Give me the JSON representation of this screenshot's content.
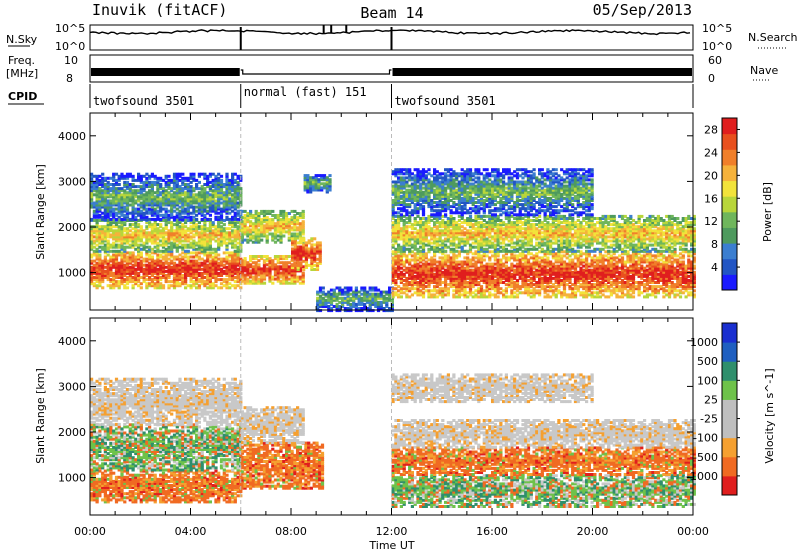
{
  "header": {
    "title_left": "Inuvik (fitACF)",
    "title_center": "Beam 14",
    "title_right": "05/Sep/2013"
  },
  "strip": {
    "nsky_label": "N.Sky",
    "nsky_ticks": [
      "10^5",
      "10^0"
    ],
    "nsearch_label": "N.Search",
    "nsearch_ticks": [
      "10^5",
      "10^0"
    ],
    "freq_label": "Freq.",
    "freq_unit": "[MHz]",
    "freq_ticks": [
      "10",
      "8"
    ],
    "nave_label": "Nave",
    "nave_ticks": [
      "60",
      "0"
    ],
    "cpid_label": "CPID",
    "cpid_segments": [
      {
        "label": "twofsound 3501",
        "start": 0,
        "end": 6
      },
      {
        "label": "normal (fast) 151",
        "start": 6,
        "end": 12
      },
      {
        "label": "twofsound 3501",
        "start": 12,
        "end": 24
      }
    ]
  },
  "chart_data": [
    {
      "type": "heatmap",
      "title": "",
      "xlabel": "Time UT",
      "ylabel": "Slant Range [km]",
      "xlim": [
        0,
        24
      ],
      "ylim": [
        180,
        4500
      ],
      "x_ticks": [
        "00:00",
        "04:00",
        "08:00",
        "12:00",
        "16:00",
        "20:00",
        "00:00"
      ],
      "y_ticks": [
        "1000",
        "2000",
        "3000",
        "4000"
      ],
      "colorbar": {
        "label": "Power [dB]",
        "ticks": [
          "4",
          "8",
          "12",
          "16",
          "20",
          "24",
          "28"
        ],
        "range": [
          0,
          30
        ],
        "colors": [
          "#1a1aff",
          "#2255c4",
          "#3b7ed0",
          "#4e9a5e",
          "#6fb65c",
          "#b8d63a",
          "#f2e33a",
          "#f5b23b",
          "#f07f2a",
          "#e8501e",
          "#e01e1e"
        ]
      },
      "bands": [
        {
          "t0": 0,
          "t1": 6,
          "r0": 700,
          "r1": 1500,
          "level": "high"
        },
        {
          "t0": 0,
          "t1": 6,
          "r0": 1500,
          "r1": 2200,
          "level": "mid"
        },
        {
          "t0": 0,
          "t1": 6,
          "r0": 2200,
          "r1": 3200,
          "level": "low"
        },
        {
          "t0": 6,
          "t1": 8.5,
          "r0": 800,
          "r1": 1400,
          "level": "high"
        },
        {
          "t0": 6,
          "t1": 8.5,
          "r0": 1700,
          "r1": 2400,
          "level": "mid"
        },
        {
          "t0": 8,
          "t1": 9.2,
          "r0": 1100,
          "r1": 1800,
          "level": "high"
        },
        {
          "t0": 8.5,
          "t1": 9.5,
          "r0": 2800,
          "r1": 3200,
          "level": "low"
        },
        {
          "t0": 9,
          "t1": 12,
          "r0": 200,
          "r1": 700,
          "level": "low"
        },
        {
          "t0": 12,
          "t1": 24,
          "r0": 500,
          "r1": 1500,
          "level": "high"
        },
        {
          "t0": 12,
          "t1": 24,
          "r0": 1500,
          "r1": 2300,
          "level": "mid"
        },
        {
          "t0": 12,
          "t1": 20,
          "r0": 2300,
          "r1": 3300,
          "level": "low"
        }
      ]
    },
    {
      "type": "heatmap",
      "title": "",
      "xlabel": "Time UT",
      "ylabel": "Slant Range [km]",
      "xlim": [
        0,
        24
      ],
      "ylim": [
        180,
        4500
      ],
      "x_ticks": [
        "00:00",
        "04:00",
        "08:00",
        "12:00",
        "16:00",
        "20:00",
        "00:00"
      ],
      "y_ticks": [
        "1000",
        "2000",
        "3000",
        "4000"
      ],
      "colorbar": {
        "label": "Velocity [m s^-1]",
        "ticks": [
          "1000",
          "500",
          "100",
          "25",
          "-25",
          "-100",
          "-500",
          "-1000"
        ],
        "range": [
          -1000,
          1000
        ],
        "colors": [
          "#e01e1e",
          "#f06a22",
          "#f5a030",
          "#bfbfbf",
          "#bfbfbf",
          "#6ec24a",
          "#2f8f6c",
          "#1f5fc0",
          "#1a2fd0"
        ]
      },
      "bands": [
        {
          "t0": 0,
          "t1": 6,
          "r0": 500,
          "r1": 1200,
          "level": "neg"
        },
        {
          "t0": 0,
          "t1": 6,
          "r0": 1200,
          "r1": 2200,
          "level": "mix"
        },
        {
          "t0": 0,
          "t1": 6,
          "r0": 2200,
          "r1": 3200,
          "level": "gray"
        },
        {
          "t0": 6,
          "t1": 9.2,
          "r0": 800,
          "r1": 1800,
          "level": "neg"
        },
        {
          "t0": 6,
          "t1": 8.5,
          "r0": 1800,
          "r1": 2600,
          "level": "gray"
        },
        {
          "t0": 12,
          "t1": 24,
          "r0": 400,
          "r1": 1100,
          "level": "mix"
        },
        {
          "t0": 12,
          "t1": 24,
          "r0": 1100,
          "r1": 1700,
          "level": "neg"
        },
        {
          "t0": 12,
          "t1": 24,
          "r0": 1700,
          "r1": 2300,
          "level": "gray"
        },
        {
          "t0": 12,
          "t1": 20,
          "r0": 2700,
          "r1": 3300,
          "level": "gray"
        }
      ]
    }
  ]
}
